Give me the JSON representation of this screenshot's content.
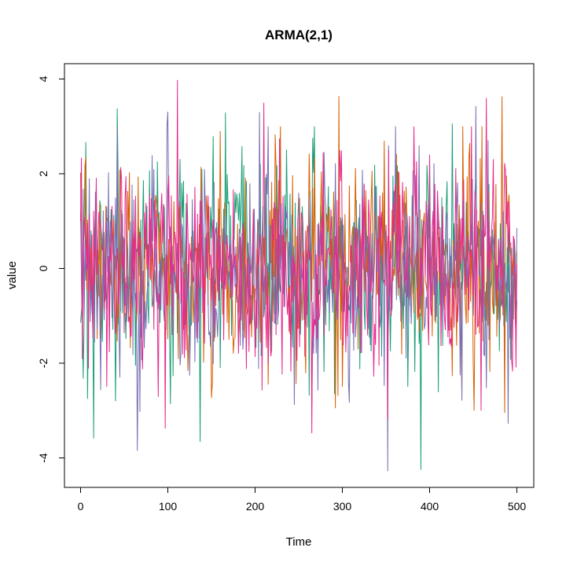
{
  "chart_data": {
    "type": "line",
    "title": "ARMA(2,1)",
    "xlabel": "Time",
    "ylabel": "value",
    "xlim": [
      0,
      500
    ],
    "ylim": [
      -4.5,
      4.0
    ],
    "x_ticks": [
      0,
      100,
      200,
      300,
      400,
      500
    ],
    "y_ticks": [
      -4,
      -2,
      0,
      2,
      4
    ],
    "grid": false,
    "legend": "none",
    "n_points": 501,
    "series": [
      {
        "color": "#1b9e77",
        "seed": 11,
        "extremes": [
          [
            6,
            2.67
          ],
          [
            8,
            -2.75
          ],
          [
            15,
            -3.59
          ],
          [
            42,
            3.38
          ],
          [
            40,
            -2.8
          ],
          [
            137,
            -3.66
          ],
          [
            166,
            3.29
          ],
          [
            390,
            -4.25
          ],
          [
            375,
            -2.5
          ],
          [
            426,
            3.06
          ]
        ]
      },
      {
        "color": "#d95f02",
        "seed": 23,
        "extremes": [
          [
            5,
            2.17
          ],
          [
            2,
            -1.4
          ],
          [
            160,
            2.9
          ],
          [
            215,
            -2.45
          ],
          [
            296,
            3.64
          ],
          [
            292,
            -2.95
          ],
          [
            438,
            3.0
          ],
          [
            451,
            -3.0
          ],
          [
            483,
            3.63
          ],
          [
            486,
            -3.05
          ]
        ]
      },
      {
        "color": "#7570b3",
        "seed": 37,
        "extremes": [
          [
            65,
            -3.85
          ],
          [
            100,
            3.31
          ],
          [
            205,
            3.3
          ],
          [
            352,
            -4.28
          ],
          [
            353,
            2.6
          ],
          [
            388,
            2.6
          ],
          [
            453,
            3.43
          ],
          [
            490,
            -3.28
          ],
          [
            10,
            1.9
          ],
          [
            265,
            -2.9
          ]
        ]
      },
      {
        "color": "#e7298a",
        "seed": 53,
        "extremes": [
          [
            111,
            3.98
          ],
          [
            97,
            -3.38
          ],
          [
            210,
            3.5
          ],
          [
            265,
            -3.48
          ],
          [
            297,
            2.5
          ],
          [
            353,
            2.5
          ],
          [
            465,
            3.6
          ],
          [
            459,
            -3.0
          ],
          [
            400,
            2.4
          ],
          [
            30,
            -2.5
          ]
        ]
      }
    ]
  }
}
